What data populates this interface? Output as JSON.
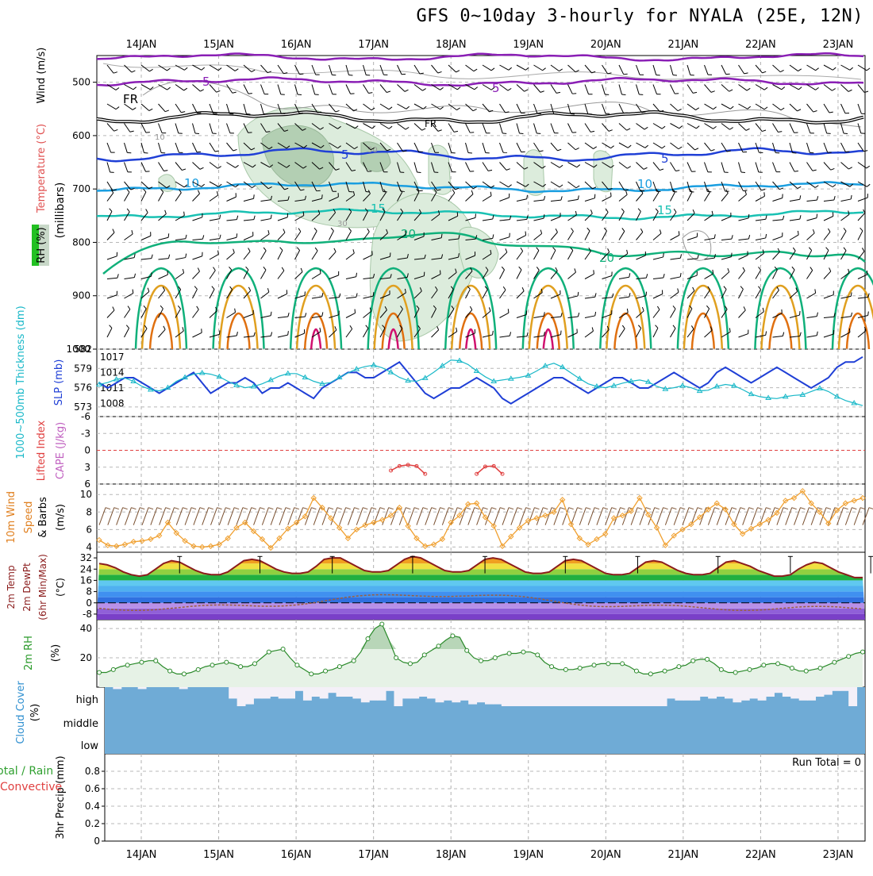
{
  "title": "GFS 0~10day 3-hourly for NYALA (25E, 12N)",
  "days": [
    "14JAN",
    "15JAN",
    "16JAN",
    "17JAN",
    "18JAN",
    "19JAN",
    "20JAN",
    "21JAN",
    "22JAN",
    "23JAN"
  ],
  "colors": {
    "purple": "#8a1fb5",
    "black": "#000000",
    "blue": "#1f3fd6",
    "lightblue": "#1a9ee0",
    "teal": "#19c1b3",
    "green": "#10b07a",
    "orange": "#e0a020",
    "darkorange": "#e07010",
    "magenta": "#d0106e",
    "rh": "#8fc08f",
    "slp": "#1f3fd6",
    "thick": "#19b8c8",
    "wind": "#f0a030",
    "temp": "#8b1c1c",
    "dew": "#9a6040",
    "cloud": "#6fabd6"
  },
  "chart_data": [
    {
      "type": "contour",
      "panel": "upper-air",
      "ylabel_parts": [
        "Wind (m/s)",
        "Temperature (°C)",
        "RH (%)",
        "(millibars)"
      ],
      "y_ticks": [
        500,
        600,
        700,
        800,
        900,
        1000
      ],
      "ylim": [
        1000,
        450
      ],
      "isotherm_labels": [
        {
          "text": "5",
          "level": "500"
        },
        {
          "text": "FR",
          "level": "freezing"
        },
        {
          "text": "5",
          "level": "650"
        },
        {
          "text": "10",
          "level": "690"
        },
        {
          "text": "15",
          "level": "745"
        },
        {
          "text": "20",
          "level": "810"
        }
      ],
      "rh_labels": [
        "10",
        "30",
        "50"
      ]
    },
    {
      "type": "line",
      "panel": "thickness-slp",
      "ylabel_left": "1000~500mb Thickness (dm)",
      "ylabel_right": "SLP (mb)",
      "y_left_ticks": [
        573,
        576,
        579,
        582
      ],
      "y_right_ticks": [
        1008,
        1011,
        1014,
        1017
      ],
      "slp": [
        1012,
        1011,
        1012,
        1013,
        1013,
        1012,
        1011,
        1010,
        1011,
        1012,
        1013,
        1014,
        1012,
        1010,
        1011,
        1012,
        1012,
        1013,
        1012,
        1010,
        1011,
        1011,
        1012,
        1011,
        1010,
        1009,
        1011,
        1012,
        1013,
        1014,
        1014,
        1013,
        1013,
        1014,
        1015,
        1016,
        1014,
        1012,
        1010,
        1009,
        1010,
        1011,
        1011,
        1012,
        1013,
        1012,
        1011,
        1009,
        1008,
        1009,
        1010,
        1011,
        1012,
        1013,
        1013,
        1012,
        1011,
        1010,
        1011,
        1012,
        1013,
        1013,
        1012,
        1011,
        1011,
        1012,
        1013,
        1014,
        1013,
        1012,
        1011,
        1012,
        1014,
        1015,
        1014,
        1013,
        1012,
        1013,
        1014,
        1015,
        1014,
        1013,
        1012,
        1011,
        1012,
        1013,
        1015,
        1016,
        1016,
        1017
      ],
      "thickness": [
        576.5,
        576.8,
        577.3,
        577.5,
        577.0,
        576.2,
        575.7,
        575.5,
        576.0,
        577.0,
        577.6,
        578.1,
        578.3,
        578.1,
        577.7,
        577.0,
        576.4,
        576.0,
        576.2,
        576.6,
        577.2,
        577.8,
        578.2,
        578.2,
        577.6,
        577.0,
        576.6,
        576.8,
        577.6,
        578.3,
        578.9,
        579.3,
        579.5,
        579.1,
        578.4,
        577.6,
        577.1,
        577.0,
        577.5,
        578.4,
        579.4,
        580.3,
        580.2,
        579.6,
        578.6,
        577.7,
        577.0,
        577.2,
        577.4,
        577.6,
        577.9,
        578.6,
        579.4,
        579.8,
        579.2,
        578.3,
        577.4,
        576.6,
        576.2,
        576.0,
        576.3,
        576.7,
        577.0,
        577.2,
        576.9,
        576.2,
        575.8,
        576.0,
        576.3,
        576.0,
        575.5,
        575.6,
        576.2,
        576.5,
        576.3,
        575.7,
        575.0,
        574.6,
        574.4,
        574.3,
        574.6,
        574.8,
        574.9,
        575.4,
        575.9,
        575.4,
        574.6,
        574.0,
        573.6,
        573.2
      ]
    },
    {
      "type": "line",
      "panel": "stability",
      "ylabel_left": "Lifted Index",
      "ylabel_right": "CAPE (J/kg)",
      "y_ticks": [
        "-6",
        "-3",
        "0",
        "3",
        "6"
      ],
      "lifted_index_segments": [
        {
          "start": 34,
          "values": [
            3.6,
            2.8,
            2.6,
            2.8,
            4.2
          ]
        },
        {
          "start": 44,
          "values": [
            4.2,
            2.9,
            2.8,
            4.2
          ]
        }
      ]
    },
    {
      "type": "line",
      "panel": "wind10m",
      "ylabel": "10m Wind Speed & Barbs (m/s)",
      "ylabel_parts": [
        "10m Wind",
        "Speed",
        "& Barbs",
        "(m/s)"
      ],
      "y_ticks": [
        4,
        6,
        8,
        10
      ],
      "ylim": [
        3.4,
        11.2
      ],
      "speed": [
        4.8,
        4.2,
        4.1,
        4.3,
        4.6,
        4.7,
        4.9,
        5.3,
        6.8,
        5.6,
        4.7,
        4.1,
        4.0,
        4.1,
        4.3,
        5.0,
        6.2,
        6.8,
        5.8,
        4.9,
        3.9,
        5.0,
        6.1,
        6.8,
        7.5,
        9.6,
        8.5,
        7.3,
        6.2,
        5.0,
        6.0,
        6.5,
        6.8,
        7.1,
        7.6,
        8.5,
        6.4,
        5.0,
        4.1,
        4.3,
        4.9,
        6.8,
        7.6,
        8.9,
        9.0,
        7.4,
        6.4,
        4.1,
        5.2,
        6.2,
        7.0,
        7.3,
        7.6,
        8.0,
        9.4,
        6.6,
        5.0,
        4.3,
        4.9,
        5.5,
        7.3,
        7.6,
        8.1,
        9.6,
        7.7,
        6.2,
        4.2,
        5.3,
        6.0,
        6.6,
        7.4,
        8.3,
        9.0,
        8.3,
        6.6,
        5.5,
        6.1,
        6.6,
        7.1,
        7.9,
        9.3,
        9.6,
        10.4,
        9.0,
        8.0,
        6.7,
        8.2,
        9.0,
        9.3,
        9.6
      ]
    },
    {
      "type": "area",
      "panel": "temperature",
      "ylabel_parts": [
        "2m Temp",
        "2m DewPt",
        "(6hr Min/Max)",
        "(°C)"
      ],
      "y_ticks": [
        "32",
        "24",
        "16",
        "8",
        "0",
        "-8"
      ],
      "ylim": [
        -12,
        36
      ],
      "temp": [
        28,
        27,
        25,
        22,
        20,
        19,
        20,
        24,
        28,
        30,
        29,
        26,
        23,
        21,
        20,
        20,
        22,
        26,
        30,
        31,
        30,
        27,
        24,
        22,
        21,
        21,
        22,
        26,
        31,
        32,
        32,
        29,
        26,
        23,
        22,
        22,
        23,
        27,
        31,
        33,
        32,
        29,
        26,
        23,
        22,
        22,
        23,
        27,
        31,
        32,
        31,
        28,
        25,
        22,
        21,
        21,
        22,
        26,
        30,
        31,
        30,
        27,
        24,
        21,
        20,
        20,
        21,
        25,
        29,
        30,
        29,
        26,
        23,
        21,
        20,
        20,
        21,
        25,
        29,
        30,
        28,
        26,
        23,
        21,
        19,
        19,
        20,
        24,
        27,
        29,
        28,
        25,
        22,
        20,
        18,
        18
      ]
    },
    {
      "type": "area",
      "panel": "rh2m",
      "ylabel_parts": [
        "2m RH",
        "(%)"
      ],
      "y_ticks": [
        20,
        40
      ],
      "ylim": [
        0,
        46
      ],
      "values": [
        10,
        10,
        12,
        14,
        15,
        16,
        17,
        18,
        18,
        14,
        11,
        9,
        9,
        10,
        12,
        14,
        15,
        16,
        17,
        16,
        14,
        14,
        16,
        20,
        24,
        25,
        26,
        20,
        15,
        12,
        9,
        9,
        11,
        12,
        14,
        16,
        18,
        24,
        33,
        40,
        43,
        32,
        20,
        17,
        16,
        17,
        22,
        25,
        28,
        32,
        35,
        34,
        25,
        20,
        18,
        18,
        20,
        22,
        23,
        23,
        24,
        24,
        22,
        17,
        14,
        12,
        12,
        12,
        13,
        14,
        15,
        16,
        16,
        16,
        16,
        14,
        11,
        9,
        9,
        10,
        11,
        12,
        14,
        15,
        18,
        19,
        19,
        16,
        12,
        10,
        10,
        11,
        12,
        13,
        15,
        16,
        16,
        15,
        13,
        11,
        11,
        12,
        13,
        15,
        17,
        19,
        21,
        23,
        24
      ]
    },
    {
      "type": "bar",
      "panel": "cloud",
      "ylabel_parts": [
        "Cloud Cover",
        "(%)"
      ],
      "levels": [
        "high",
        "middle",
        "low"
      ],
      "high_gap": [
        0,
        0.1,
        0,
        0,
        0.1,
        0,
        0,
        0,
        0,
        0.1,
        0,
        0,
        0,
        0,
        0,
        0.6,
        1,
        0.9,
        0.6,
        0.6,
        0.5,
        0.6,
        0.6,
        0.2,
        0.7,
        0.5,
        0.6,
        0.3,
        0.5,
        0.5,
        0.6,
        0.8,
        0.7,
        0.7,
        0.2,
        1,
        0.6,
        0.6,
        0.5,
        0.6,
        0.8,
        0.7,
        0.8,
        0.7,
        0.9,
        0.8,
        0.9,
        0.9,
        1,
        1,
        1,
        1,
        1,
        1,
        1,
        1,
        1,
        1,
        1,
        1,
        1,
        1,
        1,
        1,
        1,
        1,
        1,
        1,
        0.6,
        0.7,
        0.7,
        0.7,
        0.5,
        0.6,
        0.5,
        0.6,
        0.8,
        0.7,
        0.6,
        0.7,
        0.5,
        0.3,
        0.5,
        0.6,
        0.7,
        0.7,
        0.5,
        0.4,
        0.2,
        0.2,
        1,
        0
      ],
      "note": "Run Total = 0"
    },
    {
      "type": "bar",
      "panel": "precip",
      "ylabel_parts": [
        "3hr Precip (mm)",
        "Total / Rain",
        "Convective"
      ],
      "y_ticks": [
        "0",
        "0.2",
        "0.4",
        "0.6",
        "0.8"
      ],
      "run_total": "Run Total = 0"
    }
  ]
}
